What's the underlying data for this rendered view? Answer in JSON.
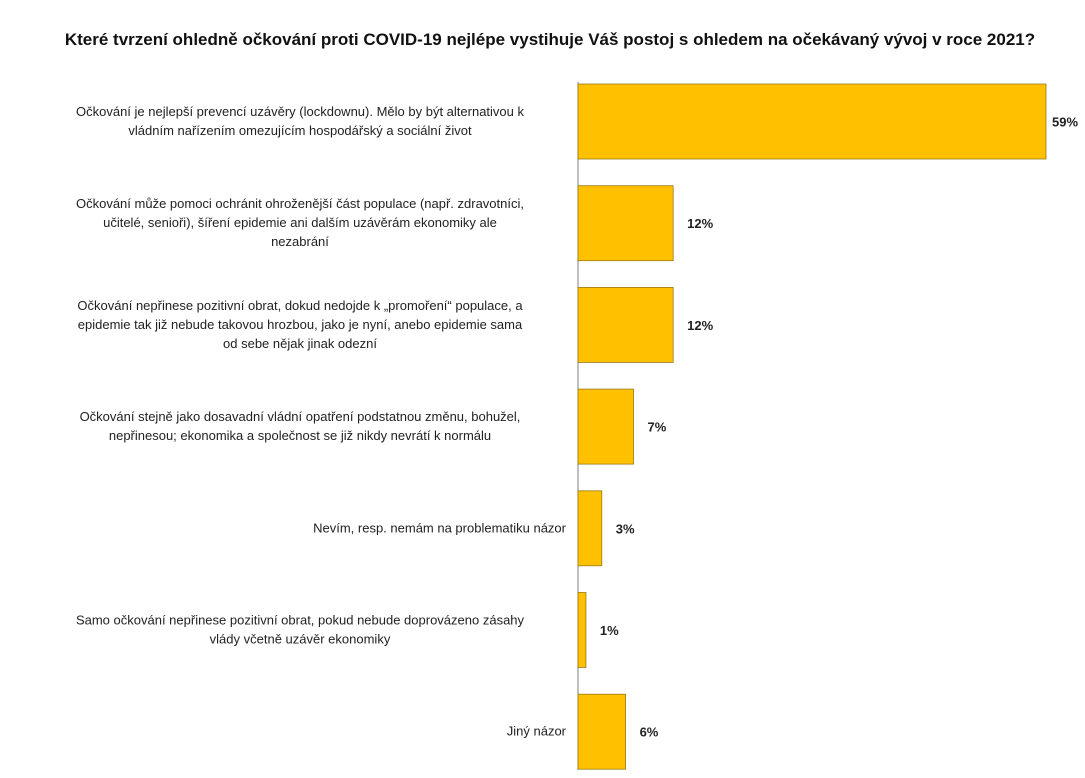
{
  "chart_data": {
    "type": "bar",
    "orientation": "horizontal",
    "title": "Které tvrzení ohledně očkování proti COVID-19 nejlépe vystihuje Váš postoj s ohledem na očekávaný vývoj v roce 2021?",
    "categories": [
      [
        "Očkování je nejlepší prevencí uzávěry (lockdownu). Mělo by být alternativou k",
        "vládním nařízením omezujícím hospodářský a sociální život"
      ],
      [
        "Očkování může pomoci ochránit ohroženější část populace (např. zdravotníci,",
        "učitelé, senioři), šíření epidemie ani dalším uzávěrám ekonomiky ale",
        "nezabrání"
      ],
      [
        "Očkování nepřinese pozitivní obrat, dokud nedojde k „promoření“ populace, a",
        "epidemie tak již nebude takovou hrozbou, jako je nyní, anebo epidemie sama",
        "od sebe nějak jinak odezní"
      ],
      [
        "Očkování stejně jako dosavadní vládní opatření podstatnou změnu, bohužel,",
        "nepřinesou; ekonomika a společnost se již nikdy nevrátí k normálu"
      ],
      [
        "Nevím, resp. nemám na problematiku názor"
      ],
      [
        "Samo očkování nepřinese pozitivní obrat, pokud nebude doprovázeno zásahy",
        "vlády včetně uzávěr ekonomiky"
      ],
      [
        "Jiný názor"
      ]
    ],
    "values": [
      59,
      12,
      12,
      7,
      3,
      1,
      6
    ],
    "value_labels": [
      "59%",
      "12%",
      "12%",
      "7%",
      "3%",
      "1%",
      "6%"
    ],
    "xlim": [
      0,
      59
    ],
    "grid": false,
    "legend": "none",
    "bar_color": "#FFC000",
    "bar_edge_color": "#9A7A14",
    "axis_color": "#7F7F7F"
  }
}
